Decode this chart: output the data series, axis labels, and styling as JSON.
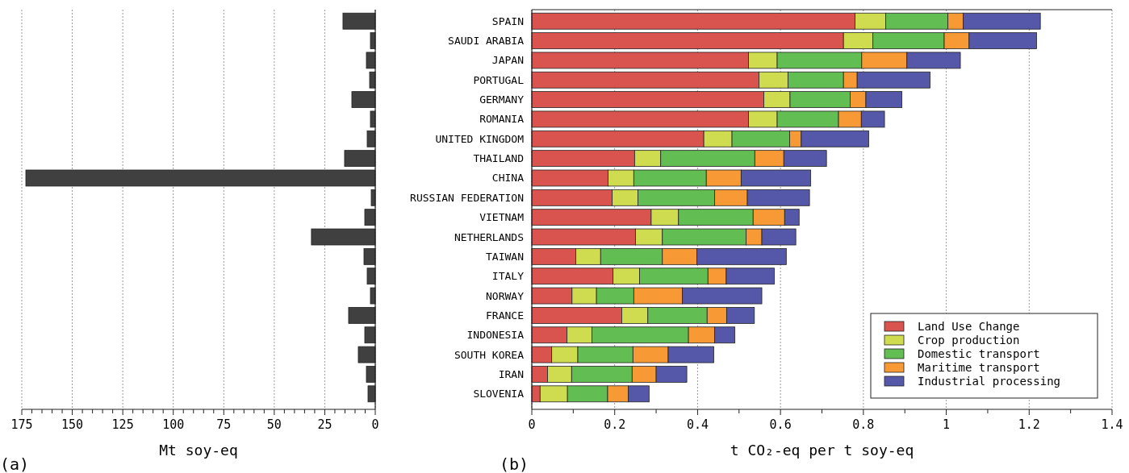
{
  "chart_data": [
    {
      "type": "bar",
      "orientation": "horizontal",
      "xlabel": "Mt soy-eq",
      "annotations": [
        "(a)"
      ],
      "tick_labels": "x",
      "grid": "x",
      "categories": [
        null,
        null,
        null,
        null,
        null,
        null,
        null,
        null,
        null,
        null,
        null,
        null,
        null,
        null,
        null,
        null,
        null,
        null,
        null,
        null
      ],
      "xlim": [
        175,
        0
      ],
      "xticks": [
        175,
        {
          "value": 170,
          "label": null
        },
        {
          "value": 165,
          "label": null
        },
        {
          "value": 160,
          "label": null
        },
        {
          "value": 155,
          "label": null
        },
        150,
        {
          "value": 145,
          "label": null
        },
        {
          "value": 140,
          "label": null
        },
        {
          "value": 135,
          "label": null
        },
        {
          "value": 130,
          "label": null
        },
        125,
        {
          "value": 120,
          "label": null
        },
        {
          "value": 115,
          "label": null
        },
        {
          "value": 110,
          "label": null
        },
        {
          "value": 105,
          "label": null
        },
        100,
        {
          "value": 95,
          "label": null
        },
        {
          "value": 90,
          "label": null
        },
        {
          "value": 85,
          "label": null
        },
        {
          "value": 80,
          "label": null
        },
        75,
        {
          "value": 70,
          "label": null
        },
        {
          "value": 65,
          "label": null
        },
        {
          "value": 60,
          "label": null
        },
        {
          "value": 55,
          "label": null
        },
        50,
        {
          "value": 45,
          "label": null
        },
        {
          "value": 40,
          "label": null
        },
        {
          "value": 35,
          "label": null
        },
        {
          "value": 30,
          "label": null
        },
        25,
        {
          "value": 20,
          "label": null
        },
        {
          "value": 15,
          "label": null
        },
        {
          "value": 10,
          "label": null
        },
        {
          "value": 5,
          "label": null
        },
        0
      ],
      "series": [
        {
          "color": "#404040",
          "values": [
            16,
            2.4,
            4.4,
            2.8,
            11.6,
            2.4,
            4,
            15.2,
            173,
            2,
            5.2,
            31.6,
            5.6,
            4,
            2.4,
            13.2,
            5.2,
            8.4,
            4.4,
            3.6
          ]
        }
      ]
    },
    {
      "type": "bar",
      "orientation": "horizontal",
      "stacked": true,
      "xlabel": "t CO₂-eq per t soy-eq",
      "annotations": [
        "(b)"
      ],
      "grid": "x",
      "legend": "bottom right",
      "categories": [
        "SPAIN",
        "SAUDI ARABIA",
        "JAPAN",
        "PORTUGAL",
        "GERMANY",
        "ROMANIA",
        "UNITED KINGDOM",
        "THAILAND",
        "CHINA",
        "RUSSIAN FEDERATION",
        "VIETNAM",
        "NETHERLANDS",
        "TAIWAN",
        "ITALY",
        "NORWAY",
        "FRANCE",
        "INDONESIA",
        "SOUTH KOREA",
        "IRAN",
        "SLOVENIA"
      ],
      "xlim": [
        0,
        1.4
      ],
      "xticks": [
        0,
        {
          "value": 0.1,
          "label": null
        },
        0.2,
        {
          "value": 0.3,
          "label": null
        },
        0.4,
        {
          "value": 0.5,
          "label": null
        },
        0.6,
        {
          "value": 0.7,
          "label": null
        },
        0.8,
        {
          "value": 0.9,
          "label": null
        },
        1,
        {
          "value": 1.1,
          "label": null
        },
        1.2,
        {
          "value": 1.3,
          "label": null
        },
        1.4
      ],
      "series": [
        {
          "name": "Land Use Change",
          "color": "#d9534f",
          "values": [
            0.78,
            0.752,
            0.523,
            0.548,
            0.56,
            0.523,
            0.415,
            0.248,
            0.184,
            0.194,
            0.288,
            0.25,
            0.106,
            0.196,
            0.097,
            0.217,
            0.085,
            0.048,
            0.038,
            0.02
          ]
        },
        {
          "name": "Crop production",
          "color": "#cfdc4f",
          "values": [
            0.074,
            0.071,
            0.069,
            0.07,
            0.063,
            0.069,
            0.068,
            0.063,
            0.062,
            0.062,
            0.066,
            0.065,
            0.06,
            0.064,
            0.059,
            0.063,
            0.06,
            0.063,
            0.058,
            0.066
          ]
        },
        {
          "name": "Domestic transport",
          "color": "#62bd52",
          "values": [
            0.15,
            0.172,
            0.204,
            0.134,
            0.145,
            0.148,
            0.139,
            0.227,
            0.175,
            0.185,
            0.18,
            0.202,
            0.149,
            0.165,
            0.09,
            0.143,
            0.233,
            0.133,
            0.146,
            0.097
          ]
        },
        {
          "name": "Maritime transport",
          "color": "#f79a35",
          "values": [
            0.037,
            0.06,
            0.109,
            0.033,
            0.038,
            0.055,
            0.028,
            0.07,
            0.084,
            0.079,
            0.076,
            0.038,
            0.083,
            0.044,
            0.117,
            0.047,
            0.063,
            0.085,
            0.058,
            0.05
          ]
        },
        {
          "name": "Industrial processing",
          "color": "#5558a8",
          "values": [
            0.186,
            0.163,
            0.129,
            0.176,
            0.087,
            0.056,
            0.163,
            0.103,
            0.168,
            0.15,
            0.035,
            0.082,
            0.216,
            0.116,
            0.192,
            0.067,
            0.049,
            0.11,
            0.074,
            0.05
          ]
        }
      ]
    }
  ]
}
